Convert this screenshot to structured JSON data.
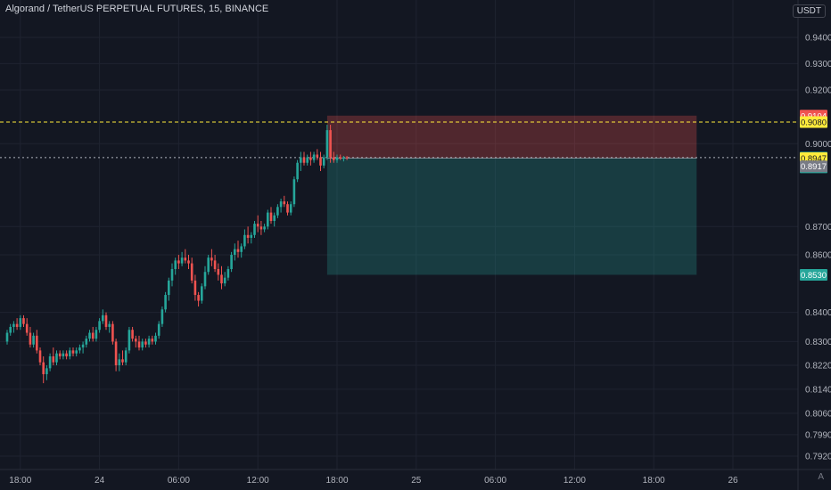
{
  "header": {
    "title": "Algorand / TetherUS PERPETUAL FUTURES, 15, BINANCE",
    "currency": "USDT",
    "scale_mode": "A"
  },
  "colors": {
    "background": "#131722",
    "grid": "#1f2330",
    "up": "#26a69a",
    "down": "#ef5350",
    "stop_zone": "rgba(239,83,80,0.28)",
    "target_zone": "rgba(38,166,154,0.26)",
    "entry_line": "#ffeb3b",
    "price_line": "#b2b5be"
  },
  "chart_data": {
    "type": "candlestick",
    "scale": "log",
    "y_ticks": [
      0.94,
      0.93,
      0.92,
      0.9,
      0.87,
      0.86,
      0.84,
      0.83,
      0.822,
      0.814,
      0.806,
      0.799,
      0.792
    ],
    "y_tick_labels": [
      "0.9400",
      "0.9300",
      "0.9200",
      "0.9000",
      "0.8700",
      "0.8600",
      "0.8400",
      "0.8300",
      "0.8220",
      "0.8140",
      "0.8060",
      "0.7990",
      "0.7920"
    ],
    "x_ticks": [
      {
        "label": "18:00",
        "bar": 4
      },
      {
        "label": "24",
        "bar": 28
      },
      {
        "label": "06:00",
        "bar": 52
      },
      {
        "label": "12:00",
        "bar": 76
      },
      {
        "label": "18:00",
        "bar": 100
      },
      {
        "label": "25",
        "bar": 124
      },
      {
        "label": "06:00",
        "bar": 148
      },
      {
        "label": "12:00",
        "bar": 172
      },
      {
        "label": "18:00",
        "bar": 196
      },
      {
        "label": "26",
        "bar": 220
      }
    ],
    "ohlc": [
      [
        0.83,
        0.834,
        0.829,
        0.833
      ],
      [
        0.833,
        0.836,
        0.832,
        0.835
      ],
      [
        0.835,
        0.837,
        0.833,
        0.836
      ],
      [
        0.836,
        0.838,
        0.834,
        0.835
      ],
      [
        0.835,
        0.839,
        0.834,
        0.838
      ],
      [
        0.838,
        0.839,
        0.835,
        0.836
      ],
      [
        0.836,
        0.838,
        0.832,
        0.833
      ],
      [
        0.833,
        0.835,
        0.828,
        0.829
      ],
      [
        0.829,
        0.833,
        0.828,
        0.832
      ],
      [
        0.832,
        0.834,
        0.826,
        0.827
      ],
      [
        0.827,
        0.828,
        0.822,
        0.823
      ],
      [
        0.823,
        0.825,
        0.816,
        0.819
      ],
      [
        0.819,
        0.822,
        0.817,
        0.821
      ],
      [
        0.821,
        0.826,
        0.82,
        0.825
      ],
      [
        0.825,
        0.828,
        0.822,
        0.823
      ],
      [
        0.823,
        0.827,
        0.822,
        0.826
      ],
      [
        0.826,
        0.827,
        0.824,
        0.825
      ],
      [
        0.825,
        0.827,
        0.824,
        0.826
      ],
      [
        0.826,
        0.827,
        0.824,
        0.825
      ],
      [
        0.825,
        0.828,
        0.824,
        0.827
      ],
      [
        0.827,
        0.828,
        0.825,
        0.826
      ],
      [
        0.826,
        0.828,
        0.825,
        0.827
      ],
      [
        0.827,
        0.829,
        0.826,
        0.828
      ],
      [
        0.828,
        0.83,
        0.826,
        0.829
      ],
      [
        0.829,
        0.832,
        0.828,
        0.831
      ],
      [
        0.831,
        0.834,
        0.83,
        0.833
      ],
      [
        0.833,
        0.835,
        0.83,
        0.831
      ],
      [
        0.831,
        0.835,
        0.83,
        0.834
      ],
      [
        0.834,
        0.838,
        0.833,
        0.837
      ],
      [
        0.837,
        0.841,
        0.836,
        0.839
      ],
      [
        0.839,
        0.84,
        0.834,
        0.835
      ],
      [
        0.835,
        0.837,
        0.833,
        0.836
      ],
      [
        0.836,
        0.837,
        0.829,
        0.83
      ],
      [
        0.83,
        0.831,
        0.82,
        0.822
      ],
      [
        0.822,
        0.826,
        0.82,
        0.824
      ],
      [
        0.824,
        0.827,
        0.822,
        0.823
      ],
      [
        0.823,
        0.828,
        0.822,
        0.827
      ],
      [
        0.827,
        0.835,
        0.826,
        0.834
      ],
      [
        0.834,
        0.835,
        0.83,
        0.831
      ],
      [
        0.831,
        0.832,
        0.828,
        0.83
      ],
      [
        0.83,
        0.832,
        0.827,
        0.828
      ],
      [
        0.828,
        0.831,
        0.827,
        0.83
      ],
      [
        0.83,
        0.831,
        0.828,
        0.829
      ],
      [
        0.829,
        0.832,
        0.828,
        0.831
      ],
      [
        0.831,
        0.832,
        0.829,
        0.83
      ],
      [
        0.83,
        0.833,
        0.829,
        0.832
      ],
      [
        0.832,
        0.837,
        0.831,
        0.836
      ],
      [
        0.836,
        0.842,
        0.835,
        0.841
      ],
      [
        0.841,
        0.847,
        0.84,
        0.846
      ],
      [
        0.846,
        0.852,
        0.844,
        0.851
      ],
      [
        0.851,
        0.857,
        0.849,
        0.855
      ],
      [
        0.855,
        0.859,
        0.853,
        0.858
      ],
      [
        0.858,
        0.86,
        0.855,
        0.857
      ],
      [
        0.857,
        0.861,
        0.856,
        0.859
      ],
      [
        0.859,
        0.862,
        0.857,
        0.858
      ],
      [
        0.858,
        0.86,
        0.855,
        0.857
      ],
      [
        0.857,
        0.859,
        0.85,
        0.851
      ],
      [
        0.851,
        0.853,
        0.844,
        0.846
      ],
      [
        0.846,
        0.847,
        0.842,
        0.844
      ],
      [
        0.844,
        0.85,
        0.843,
        0.849
      ],
      [
        0.849,
        0.856,
        0.848,
        0.854
      ],
      [
        0.854,
        0.86,
        0.853,
        0.859
      ],
      [
        0.859,
        0.862,
        0.856,
        0.858
      ],
      [
        0.858,
        0.86,
        0.854,
        0.855
      ],
      [
        0.855,
        0.857,
        0.851,
        0.853
      ],
      [
        0.853,
        0.856,
        0.848,
        0.85
      ],
      [
        0.85,
        0.854,
        0.849,
        0.852
      ],
      [
        0.852,
        0.856,
        0.851,
        0.855
      ],
      [
        0.855,
        0.861,
        0.854,
        0.86
      ],
      [
        0.86,
        0.864,
        0.858,
        0.862
      ],
      [
        0.862,
        0.865,
        0.859,
        0.861
      ],
      [
        0.861,
        0.864,
        0.859,
        0.863
      ],
      [
        0.863,
        0.869,
        0.862,
        0.867
      ],
      [
        0.867,
        0.87,
        0.864,
        0.866
      ],
      [
        0.866,
        0.868,
        0.864,
        0.867
      ],
      [
        0.867,
        0.872,
        0.866,
        0.871
      ],
      [
        0.871,
        0.874,
        0.868,
        0.87
      ],
      [
        0.87,
        0.872,
        0.867,
        0.869
      ],
      [
        0.869,
        0.871,
        0.868,
        0.87
      ],
      [
        0.87,
        0.876,
        0.869,
        0.875
      ],
      [
        0.875,
        0.877,
        0.871,
        0.872
      ],
      [
        0.872,
        0.875,
        0.87,
        0.874
      ],
      [
        0.874,
        0.878,
        0.873,
        0.877
      ],
      [
        0.877,
        0.88,
        0.875,
        0.879
      ],
      [
        0.879,
        0.881,
        0.877,
        0.878
      ],
      [
        0.878,
        0.879,
        0.874,
        0.875
      ],
      [
        0.875,
        0.879,
        0.874,
        0.878
      ],
      [
        0.878,
        0.888,
        0.877,
        0.887
      ],
      [
        0.887,
        0.894,
        0.886,
        0.893
      ],
      [
        0.893,
        0.897,
        0.89,
        0.895
      ],
      [
        0.895,
        0.897,
        0.892,
        0.893
      ],
      [
        0.893,
        0.896,
        0.892,
        0.895
      ],
      [
        0.895,
        0.897,
        0.892,
        0.894
      ],
      [
        0.894,
        0.897,
        0.893,
        0.896
      ],
      [
        0.896,
        0.898,
        0.894,
        0.895
      ],
      [
        0.895,
        0.897,
        0.89,
        0.892
      ],
      [
        0.892,
        0.896,
        0.891,
        0.895
      ],
      [
        0.895,
        0.907,
        0.894,
        0.905
      ],
      [
        0.905,
        0.907,
        0.893,
        0.895
      ],
      [
        0.895,
        0.897,
        0.893,
        0.894
      ],
      [
        0.894,
        0.896,
        0.893,
        0.895
      ],
      [
        0.895,
        0.896,
        0.894,
        0.8945
      ],
      [
        0.8945,
        0.8955,
        0.8935,
        0.895
      ],
      [
        0.895,
        0.8955,
        0.894,
        0.8949
      ]
    ],
    "position": {
      "type": "short",
      "stop": 0.9104,
      "entry": 0.8947,
      "target": 0.853,
      "start_bar": 97,
      "end_bar": 209
    },
    "horizontal_lines": [
      0.908,
      0.8949
    ],
    "price_labels": [
      {
        "value": 0.9104,
        "text": "0.9104",
        "bg": "#ef5350",
        "fg": "#ffffff"
      },
      {
        "value": 0.908,
        "text": "0.9080",
        "bg": "#ffeb3b",
        "fg": "#131722"
      },
      {
        "value": 0.8949,
        "text": "0.8949",
        "sub": "07:25",
        "bg": "#26a69a",
        "fg": "#ffffff"
      },
      {
        "value": 0.8947,
        "text": "0.8947",
        "bg": "#ffeb3b",
        "fg": "#131722"
      },
      {
        "value": 0.8917,
        "text": "0.8917",
        "bg": "#787b86",
        "fg": "#ffffff"
      },
      {
        "value": 0.853,
        "text": "0.8530",
        "bg": "#26a69a",
        "fg": "#ffffff"
      }
    ]
  }
}
